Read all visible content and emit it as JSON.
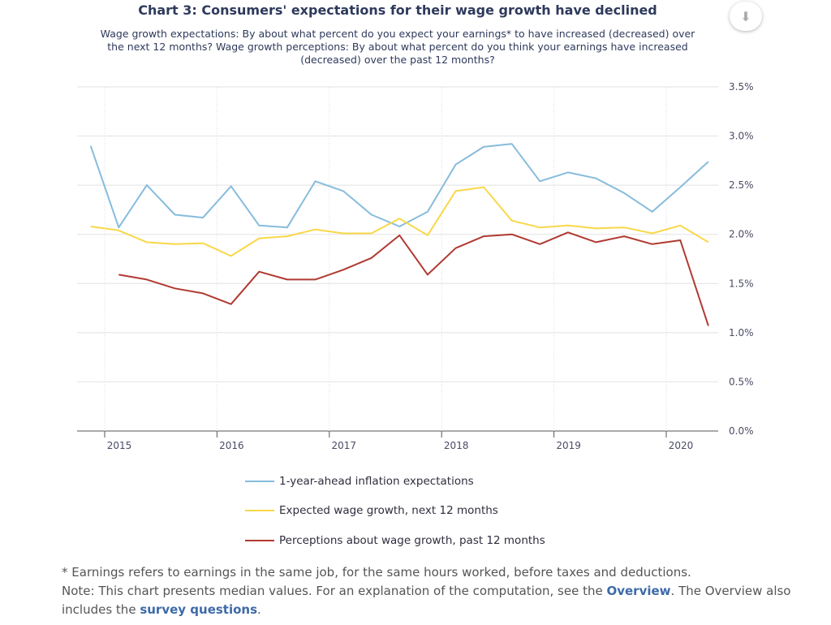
{
  "chart_data": {
    "type": "line",
    "title": "Chart 3: Consumers' expectations for their wage growth have declined",
    "subtitle": "Wage growth expectations: By about what percent do you expect your earnings* to have increased (decreased) over the next 12 months? Wage growth perceptions: By about what percent do you think your earnings have increased (decreased) over the past 12 months?",
    "x": [
      "2014-11",
      "2015-02",
      "2015-05",
      "2015-08",
      "2015-11",
      "2016-02",
      "2016-05",
      "2016-08",
      "2016-11",
      "2017-02",
      "2017-05",
      "2017-08",
      "2017-11",
      "2018-02",
      "2018-05",
      "2018-08",
      "2018-11",
      "2019-02",
      "2019-05",
      "2019-08",
      "2019-11",
      "2020-02",
      "2020-05"
    ],
    "x_ticks": [
      "2015",
      "2016",
      "2017",
      "2018",
      "2019",
      "2020"
    ],
    "y_ticks": [
      "0.0%",
      "0.5%",
      "1.0%",
      "1.5%",
      "2.0%",
      "2.5%",
      "3.0%",
      "3.5%"
    ],
    "ylim": [
      0,
      3.5
    ],
    "grid": true,
    "legend_placement": "bottom",
    "series": [
      {
        "name": "1-year-ahead inflation expectations",
        "color": "#86bcdc",
        "values": [
          2.9,
          2.07,
          2.5,
          2.2,
          2.17,
          2.49,
          2.09,
          2.07,
          2.54,
          2.44,
          2.2,
          2.08,
          2.23,
          2.71,
          2.89,
          2.92,
          2.54,
          2.63,
          2.57,
          2.42,
          2.23,
          2.48,
          2.74
        ]
      },
      {
        "name": "Expected wage growth, next 12 months",
        "color": "#f8d849",
        "values": [
          2.08,
          2.04,
          1.92,
          1.9,
          1.91,
          1.78,
          1.96,
          1.98,
          2.05,
          2.01,
          2.01,
          2.16,
          1.99,
          2.44,
          2.48,
          2.14,
          2.07,
          2.09,
          2.06,
          2.07,
          2.01,
          2.09,
          1.92
        ]
      },
      {
        "name": "Perceptions about wage growth, past 12 months",
        "color": "#b03a32",
        "values": [
          null,
          1.59,
          1.54,
          1.45,
          1.4,
          1.29,
          1.62,
          1.54,
          1.54,
          1.64,
          1.76,
          1.99,
          1.59,
          1.86,
          1.98,
          2.0,
          1.9,
          2.02,
          1.92,
          1.98,
          1.9,
          1.94,
          1.07
        ]
      }
    ]
  },
  "download_icon": "download-icon",
  "footer": {
    "line1": "* Earnings refers to earnings in the same job, for the same hours worked, before taxes and deductions.",
    "note_pre": "Note: This chart presents median values. For an explanation of the computation, see the ",
    "overview_link": "Overview",
    "note_mid": ". The Overview also includes the ",
    "survey_link": "survey questions",
    "note_end": "."
  }
}
